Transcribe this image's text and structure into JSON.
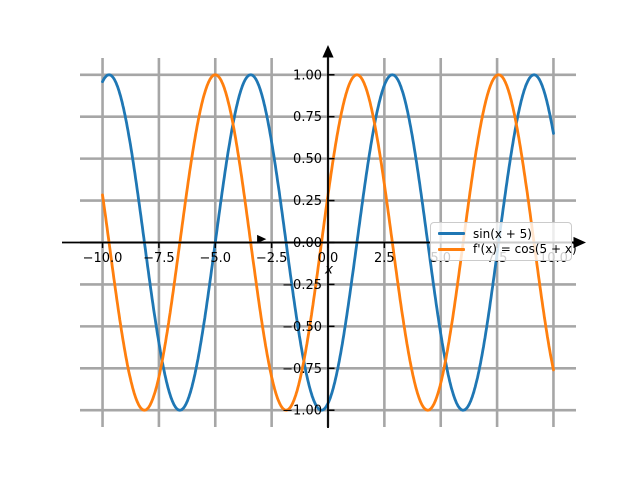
{
  "chart_data": {
    "type": "line",
    "title": "",
    "xlabel": "x",
    "ylabel": "",
    "x_range": [
      -10,
      10
    ],
    "xlim": [
      -11,
      11
    ],
    "ylim": [
      -1.1,
      1.1
    ],
    "grid": true,
    "x_ticks": [
      -10,
      -7.5,
      -5,
      -2.5,
      0,
      2.5,
      5,
      7.5,
      10
    ],
    "x_tick_labels": [
      "−10.0",
      "−7.5",
      "−5.0",
      "−2.5",
      "0.0",
      "2.5",
      "5.0",
      "7.5",
      "10.0"
    ],
    "y_ticks": [
      -1,
      -0.75,
      -0.5,
      -0.25,
      0,
      0.25,
      0.5,
      0.75,
      1
    ],
    "y_tick_labels": [
      "−1.00",
      "−0.75",
      "−0.50",
      "−0.25",
      "0.00",
      "0.25",
      "0.50",
      "0.75",
      "1.00"
    ],
    "series": [
      {
        "name": "sin(x + 5)",
        "color": "#1f77b4",
        "function": "sin",
        "phase": 5,
        "amplitude": 1
      },
      {
        "name": "f'(x) = cos(5 + x)",
        "color": "#ff7f0e",
        "function": "cos",
        "phase": 5,
        "amplitude": 1
      }
    ],
    "legend_position": "center right",
    "axis_arrows": {
      "x_end": "right",
      "y_end": "top"
    },
    "stray_marker": {
      "shape": "right-arrow",
      "x": -2.95,
      "y": 0.02
    },
    "colors": {
      "grid": "#a6a6a6",
      "axis": "#000000",
      "background": "#ffffff"
    }
  }
}
